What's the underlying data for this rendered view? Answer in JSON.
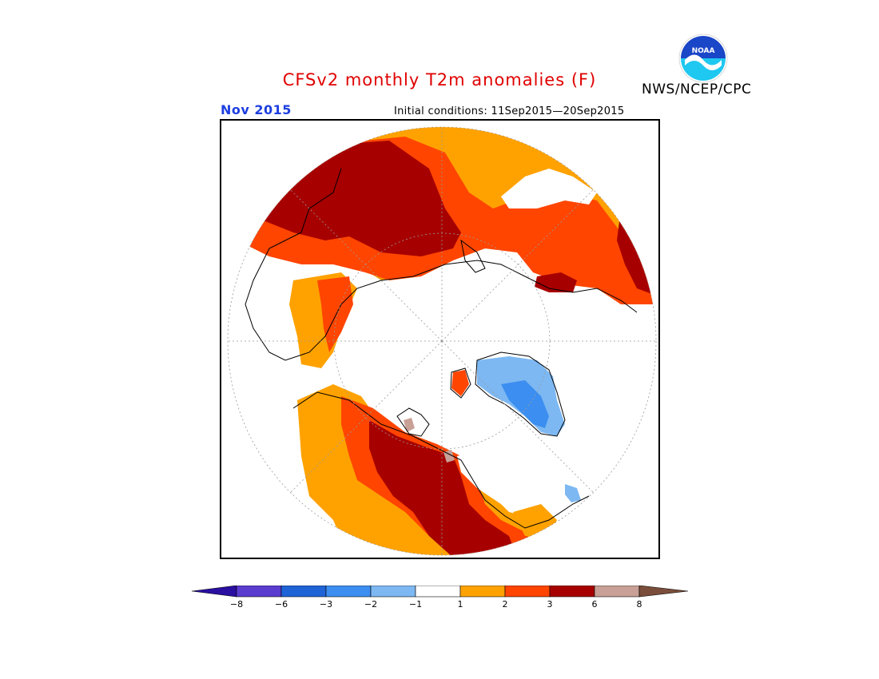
{
  "header": {
    "title": "CFSv2 monthly T2m anomalies (F)",
    "month": "Nov 2015",
    "initial_conditions": "Initial conditions: 11Sep2015—20Sep2015",
    "agency": "NWS/NCEP/CPC",
    "logo_text": "NOAA"
  },
  "map": {
    "projection": "north-polar-stereographic",
    "land_no_anomaly_color": "#ffffff",
    "coastline_color": "#000000"
  },
  "colorbar": {
    "tick_labels": [
      "−8",
      "−6",
      "−3",
      "−2",
      "−1",
      "1",
      "2",
      "3",
      "6",
      "8"
    ],
    "colors": [
      "#2a0fa0",
      "#5a3ccf",
      "#1f64d6",
      "#3c8ef0",
      "#7db8f2",
      "#ffffff",
      "#ffa200",
      "#ff4500",
      "#a70000",
      "#c8a096",
      "#7a4e3a"
    ]
  }
}
